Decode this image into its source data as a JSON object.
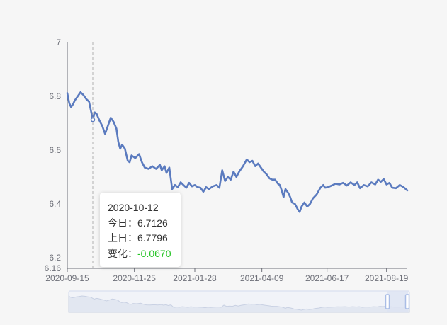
{
  "chart_data": {
    "type": "line",
    "title": "",
    "xlabel": "",
    "ylabel": "",
    "ylim": [
      6.16,
      7
    ],
    "y_ticks": [
      "7",
      "6.8",
      "6.6",
      "6.4",
      "6.2",
      "6.16"
    ],
    "x_tick_labels": [
      "2020-09-15",
      "2020-11-25",
      "2021-01-28",
      "2021-04-09",
      "2021-06-17",
      "2021-08-19"
    ],
    "x_range": [
      "2020-09-15",
      "2021-09-10"
    ],
    "grid": false,
    "line_color": "#5b7bbf",
    "series": [
      {
        "points": [
          [
            "2020-09-15",
            6.812
          ],
          [
            "2020-09-17",
            6.775
          ],
          [
            "2020-09-19",
            6.76
          ],
          [
            "2020-09-21",
            6.77
          ],
          [
            "2020-09-23",
            6.785
          ],
          [
            "2020-09-26",
            6.8
          ],
          [
            "2020-09-29",
            6.815
          ],
          [
            "2020-10-02",
            6.805
          ],
          [
            "2020-10-05",
            6.79
          ],
          [
            "2020-10-08",
            6.78
          ],
          [
            "2020-10-12",
            6.7126
          ],
          [
            "2020-10-14",
            6.74
          ],
          [
            "2020-10-16",
            6.735
          ],
          [
            "2020-10-19",
            6.71
          ],
          [
            "2020-10-22",
            6.69
          ],
          [
            "2020-10-25",
            6.66
          ],
          [
            "2020-10-28",
            6.69
          ],
          [
            "2020-10-31",
            6.72
          ],
          [
            "2020-11-03",
            6.705
          ],
          [
            "2020-11-06",
            6.68
          ],
          [
            "2020-11-08",
            6.63
          ],
          [
            "2020-11-10",
            6.605
          ],
          [
            "2020-11-12",
            6.62
          ],
          [
            "2020-11-15",
            6.605
          ],
          [
            "2020-11-18",
            6.56
          ],
          [
            "2020-11-20",
            6.555
          ],
          [
            "2020-11-22",
            6.58
          ],
          [
            "2020-11-26",
            6.57
          ],
          [
            "2020-11-30",
            6.585
          ],
          [
            "2020-12-03",
            6.555
          ],
          [
            "2020-12-06",
            6.535
          ],
          [
            "2020-12-10",
            6.53
          ],
          [
            "2020-12-14",
            6.54
          ],
          [
            "2020-12-18",
            6.53
          ],
          [
            "2020-12-22",
            6.545
          ],
          [
            "2020-12-24",
            6.525
          ],
          [
            "2020-12-27",
            6.54
          ],
          [
            "2020-12-29",
            6.515
          ],
          [
            "2021-01-01",
            6.535
          ],
          [
            "2021-01-04",
            6.455
          ],
          [
            "2021-01-07",
            6.47
          ],
          [
            "2021-01-10",
            6.462
          ],
          [
            "2021-01-13",
            6.48
          ],
          [
            "2021-01-16",
            6.47
          ],
          [
            "2021-01-19",
            6.46
          ],
          [
            "2021-01-22",
            6.478
          ],
          [
            "2021-01-25",
            6.465
          ],
          [
            "2021-01-28",
            6.47
          ],
          [
            "2021-01-31",
            6.462
          ],
          [
            "2021-02-03",
            6.46
          ],
          [
            "2021-02-06",
            6.445
          ],
          [
            "2021-02-09",
            6.462
          ],
          [
            "2021-02-12",
            6.455
          ],
          [
            "2021-02-16",
            6.465
          ],
          [
            "2021-02-20",
            6.47
          ],
          [
            "2021-02-23",
            6.46
          ],
          [
            "2021-02-26",
            6.525
          ],
          [
            "2021-03-01",
            6.485
          ],
          [
            "2021-03-04",
            6.5
          ],
          [
            "2021-03-07",
            6.49
          ],
          [
            "2021-03-10",
            6.52
          ],
          [
            "2021-03-13",
            6.5
          ],
          [
            "2021-03-16",
            6.52
          ],
          [
            "2021-03-20",
            6.54
          ],
          [
            "2021-03-24",
            6.565
          ],
          [
            "2021-03-27",
            6.555
          ],
          [
            "2021-03-30",
            6.56
          ],
          [
            "2021-04-02",
            6.54
          ],
          [
            "2021-04-05",
            6.55
          ],
          [
            "2021-04-08",
            6.535
          ],
          [
            "2021-04-11",
            6.52
          ],
          [
            "2021-04-14",
            6.51
          ],
          [
            "2021-04-17",
            6.495
          ],
          [
            "2021-04-20",
            6.49
          ],
          [
            "2021-04-23",
            6.49
          ],
          [
            "2021-04-26",
            6.475
          ],
          [
            "2021-04-28",
            6.47
          ],
          [
            "2021-04-30",
            6.45
          ],
          [
            "2021-05-02",
            6.425
          ],
          [
            "2021-05-04",
            6.455
          ],
          [
            "2021-05-07",
            6.44
          ],
          [
            "2021-05-09",
            6.425
          ],
          [
            "2021-05-11",
            6.405
          ],
          [
            "2021-05-14",
            6.4
          ],
          [
            "2021-05-17",
            6.38
          ],
          [
            "2021-05-19",
            6.37
          ],
          [
            "2021-05-21",
            6.39
          ],
          [
            "2021-05-24",
            6.405
          ],
          [
            "2021-05-27",
            6.39
          ],
          [
            "2021-05-30",
            6.4
          ],
          [
            "2021-06-02",
            6.42
          ],
          [
            "2021-06-06",
            6.435
          ],
          [
            "2021-06-10",
            6.46
          ],
          [
            "2021-06-13",
            6.47
          ],
          [
            "2021-06-15",
            6.46
          ],
          [
            "2021-06-18",
            6.462
          ],
          [
            "2021-06-22",
            6.468
          ],
          [
            "2021-06-26",
            6.475
          ],
          [
            "2021-06-30",
            6.472
          ],
          [
            "2021-07-04",
            6.478
          ],
          [
            "2021-07-08",
            6.468
          ],
          [
            "2021-07-12",
            6.48
          ],
          [
            "2021-07-16",
            6.47
          ],
          [
            "2021-07-19",
            6.48
          ],
          [
            "2021-07-22",
            6.458
          ],
          [
            "2021-07-26",
            6.47
          ],
          [
            "2021-07-30",
            6.465
          ],
          [
            "2021-08-03",
            6.48
          ],
          [
            "2021-08-07",
            6.472
          ],
          [
            "2021-08-10",
            6.49
          ],
          [
            "2021-08-13",
            6.482
          ],
          [
            "2021-08-16",
            6.492
          ],
          [
            "2021-08-19",
            6.472
          ],
          [
            "2021-08-22",
            6.478
          ],
          [
            "2021-08-25",
            6.46
          ],
          [
            "2021-08-29",
            6.458
          ],
          [
            "2021-09-02",
            6.47
          ],
          [
            "2021-09-06",
            6.462
          ],
          [
            "2021-09-10",
            6.45
          ]
        ]
      }
    ]
  },
  "crosshair": {
    "date": "2020-10-12",
    "value": 6.7126
  },
  "tooltip": {
    "date": "2020-10-12",
    "today_label": "今日：",
    "today_value": "6.7126",
    "prev_label": "上日：",
    "prev_value": "6.7796",
    "change_label": "变化：",
    "change_value": "-0.0670",
    "change_color": "#22c322"
  },
  "data_zoom": {
    "start_percent": 0,
    "end_percent": 100,
    "fill_color": "#dde4f3",
    "handle_color": "#a9bde6"
  }
}
